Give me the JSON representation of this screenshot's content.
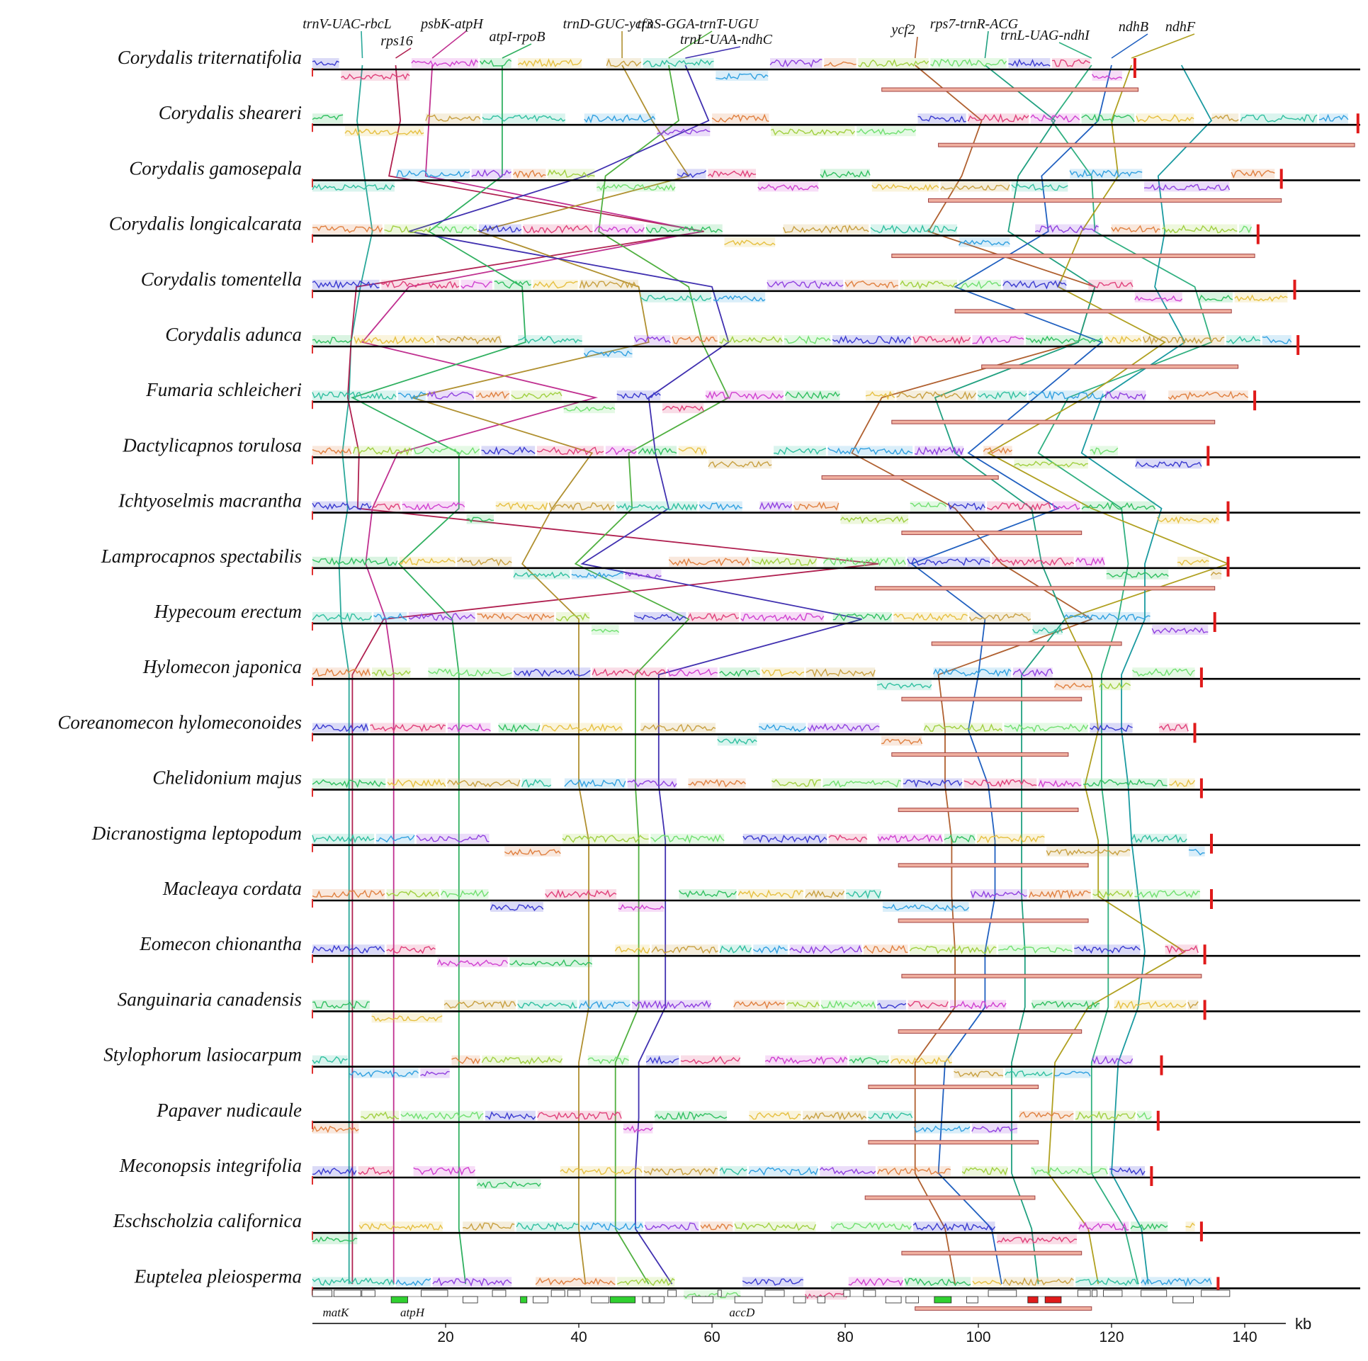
{
  "figure": {
    "axis_unit": "kb",
    "axis_ticks": [
      "20",
      "40",
      "60",
      "80",
      "100",
      "120",
      "140"
    ],
    "axis_ticks_kb": [
      20,
      40,
      60,
      80,
      100,
      120,
      140
    ],
    "axis_range_kb": [
      0,
      155
    ],
    "block_colors": [
      "#3a3ad0",
      "#e0407a",
      "#d040d0",
      "#30c060",
      "#e6c040",
      "#c8a040",
      "#30c0a0",
      "#30a0e0",
      "#9040e0",
      "#e08040",
      "#a0d040",
      "#70e070"
    ],
    "region_labels": [
      {
        "text": "trnV-UAC-rbcL",
        "color": "#2aa89a",
        "kb": [
          7.5,
          6.7,
          7.8,
          9.0,
          7.2,
          5.8,
          5.5,
          4.5,
          5.3,
          4.0,
          4.3,
          5.5,
          5.5,
          5.5,
          5.5,
          5.5,
          5.5,
          5.5,
          5.5,
          5.5,
          5.5,
          5.5,
          5.5
        ]
      },
      {
        "text": "rps16",
        "color": "#b02050",
        "kb": [
          12.5,
          13.2,
          11.5,
          58.8,
          6.6,
          5.8,
          5.3,
          7.0,
          6.8,
          85.0,
          10.7,
          6.0,
          6.0,
          6.0,
          6.0,
          6.0,
          6.0,
          6.0,
          6.0,
          6.0,
          6.0,
          6.0,
          6.0
        ]
      },
      {
        "text": "psbK-atpH",
        "color": "#c03090",
        "kb": [
          18.0,
          17.5,
          17.0,
          58.5,
          14.5,
          7.5,
          42.5,
          12.8,
          9.0,
          8.0,
          11.0,
          12.2,
          12.2,
          12.2,
          12.2,
          12.2,
          12.2,
          12.2,
          12.2,
          12.2,
          12.2,
          12.2,
          12.2
        ]
      },
      {
        "text": "atpI-rpoB",
        "color": "#30b060",
        "kb": [
          28.5,
          28.5,
          28.5,
          17.5,
          31.5,
          32.0,
          6.0,
          22.0,
          22.0,
          13.0,
          21.0,
          22.0,
          22.0,
          22.0,
          22.0,
          22.0,
          22.0,
          22.0,
          22.0,
          22.0,
          22.0,
          22.0,
          23.0
        ]
      },
      {
        "text": "trnD-GUC-ycf3",
        "color": "#b09030",
        "kb": [
          46.5,
          51.0,
          56.5,
          25.0,
          49.0,
          50.5,
          15.0,
          42.0,
          36.0,
          31.5,
          40.0,
          40.0,
          40.0,
          40.0,
          41.5,
          41.5,
          41.5,
          41.5,
          40.0,
          40.0,
          40.0,
          40.0,
          41.0
        ]
      },
      {
        "text": "trnS-GGA-trnT-UGU",
        "color": "#50b040",
        "kb": [
          53.5,
          55.0,
          44.0,
          43.0,
          56.5,
          58.5,
          62.5,
          47.5,
          48.0,
          39.5,
          56.5,
          48.5,
          48.5,
          48.5,
          49.0,
          49.0,
          49.0,
          49.0,
          45.5,
          45.5,
          45.5,
          45.5,
          50.5
        ]
      },
      {
        "text": "trnL-UAA-ndhC",
        "color": "#4030b0",
        "kb": [
          56.0,
          59.5,
          41.0,
          14.5,
          60.0,
          62.5,
          50.5,
          51.5,
          53.5,
          40.5,
          82.5,
          52.0,
          52.0,
          52.0,
          53.0,
          53.0,
          53.0,
          53.0,
          49.0,
          49.0,
          48.5,
          48.5,
          54.0
        ]
      },
      {
        "text": "ycf2",
        "color": "#b06030",
        "kb": [
          90.5,
          100.5,
          97.5,
          92.5,
          117.5,
          115.0,
          85.5,
          81.0,
          96.5,
          103.5,
          117.0,
          94.0,
          95.0,
          95.0,
          96.0,
          96.0,
          96.5,
          96.5,
          90.5,
          90.5,
          90.5,
          95.0,
          96.5
        ]
      },
      {
        "text": "rps7-trnR-ACG",
        "color": "#20a080",
        "kb": [
          101.0,
          111.5,
          106.0,
          104.5,
          117.5,
          115.0,
          93.5,
          96.5,
          108.0,
          109.5,
          113.0,
          106.5,
          106.5,
          106.5,
          106.5,
          106.5,
          107.0,
          107.0,
          105.0,
          105.0,
          105.0,
          108.0,
          109.0
        ]
      },
      {
        "text": "trnL-UAG-ndhI",
        "color": "#30b080",
        "kb": [
          117.0,
          111.0,
          117.0,
          117.5,
          132.5,
          135.0,
          113.5,
          109.0,
          121.5,
          122.5,
          121.0,
          118.5,
          118.5,
          118.5,
          119.5,
          119.5,
          119.5,
          119.5,
          117.0,
          117.0,
          117.0,
          122.0,
          124.0
        ]
      },
      {
        "text": "ndhB",
        "color": "#2060c0",
        "kb": [
          120.0,
          118.0,
          109.5,
          110.5,
          96.5,
          118.5,
          108.5,
          98.5,
          112.0,
          90.0,
          101.0,
          100.0,
          98.5,
          101.5,
          102.5,
          102.5,
          101.0,
          101.0,
          95.0,
          94.5,
          94.0,
          102.0,
          103.5
        ]
      },
      {
        "text": "ndhF",
        "color": "#b0a020",
        "kb": [
          123.0,
          120.0,
          121.0,
          115.5,
          112.0,
          128.0,
          116.0,
          101.5,
          117.0,
          137.5,
          113.0,
          117.0,
          118.0,
          116.0,
          118.0,
          118.0,
          131.0,
          116.5,
          111.5,
          111.0,
          110.5,
          116.5,
          118.0
        ]
      },
      {
        "text": "",
        "color": "#1a9aa0",
        "kb": [
          130.5,
          135.0,
          127.0,
          128.0,
          126.5,
          131.0,
          118.5,
          115.5,
          127.5,
          125.0,
          125.0,
          121.5,
          121.5,
          122.5,
          123.0,
          124.0,
          125.0,
          124.0,
          121.0,
          120.5,
          120.0,
          124.5,
          125.5
        ]
      }
    ],
    "taxa": [
      {
        "name": "Corydalis triternatifolia",
        "length_kb": 123.5,
        "rc_range": [
          85.5,
          124.0
        ]
      },
      {
        "name": "Corydalis sheareri",
        "length_kb": 157.0,
        "rc_range": [
          94.0,
          156.5
        ]
      },
      {
        "name": "Corydalis gamosepala",
        "length_kb": 145.5,
        "rc_range": [
          92.5,
          145.5
        ]
      },
      {
        "name": "Corydalis longicalcarata",
        "length_kb": 142.0,
        "rc_range": [
          87.0,
          141.5
        ]
      },
      {
        "name": "Corydalis tomentella",
        "length_kb": 147.5,
        "rc_range": [
          96.5,
          138.0
        ]
      },
      {
        "name": "Corydalis adunca",
        "length_kb": 148.0,
        "rc_range": [
          100.5,
          139.0
        ]
      },
      {
        "name": "Fumaria schleicheri",
        "length_kb": 141.5,
        "rc_range": [
          87.0,
          135.5
        ]
      },
      {
        "name": "Dactylicapnos torulosa",
        "length_kb": 134.5,
        "rc_range": [
          76.5,
          103.0
        ]
      },
      {
        "name": "Ichtyoselmis macrantha",
        "length_kb": 137.5,
        "rc_range": [
          88.5,
          115.5
        ]
      },
      {
        "name": "Lamprocapnos spectabilis",
        "length_kb": 137.5,
        "rc_range": [
          84.5,
          135.5
        ]
      },
      {
        "name": "Hypecoum erectum",
        "length_kb": 135.5,
        "rc_range": [
          93.0,
          121.5
        ]
      },
      {
        "name": "Hylomecon japonica",
        "length_kb": 133.5,
        "rc_range": [
          88.5,
          115.5
        ]
      },
      {
        "name": "Coreanomecon hylomeconoides",
        "length_kb": 132.5,
        "rc_range": [
          87.0,
          113.5
        ]
      },
      {
        "name": "Chelidonium majus",
        "length_kb": 133.5,
        "rc_range": [
          88.0,
          115.0
        ]
      },
      {
        "name": "Dicranostigma leptopodum",
        "length_kb": 135.0,
        "rc_range": [
          88.0,
          116.5
        ]
      },
      {
        "name": "Macleaya cordata",
        "length_kb": 135.0,
        "rc_range": [
          88.0,
          116.5
        ]
      },
      {
        "name": "Eomecon chionantha",
        "length_kb": 134.0,
        "rc_range": [
          88.5,
          133.5
        ]
      },
      {
        "name": "Sanguinaria canadensis",
        "length_kb": 134.0,
        "rc_range": [
          88.0,
          115.5
        ]
      },
      {
        "name": "Stylophorum lasiocarpum",
        "length_kb": 127.5,
        "rc_range": [
          83.5,
          109.0
        ]
      },
      {
        "name": "Papaver nudicaule",
        "length_kb": 127.0,
        "rc_range": [
          83.5,
          109.0
        ]
      },
      {
        "name": "Meconopsis integrifolia",
        "length_kb": 126.0,
        "rc_range": [
          83.0,
          108.5
        ]
      },
      {
        "name": "Eschscholzia californica",
        "length_kb": 133.5,
        "rc_range": [
          88.5,
          115.5
        ]
      },
      {
        "name": "Euptelea pleiosperma",
        "length_kb": 136.0,
        "rc_range": [
          90.5,
          117.0
        ]
      }
    ],
    "gene_annotations": [
      {
        "text": "matK",
        "kb": 3.5
      },
      {
        "text": "atpH",
        "kb": 15.0
      },
      {
        "text": "accD",
        "kb": 64.5
      }
    ]
  }
}
